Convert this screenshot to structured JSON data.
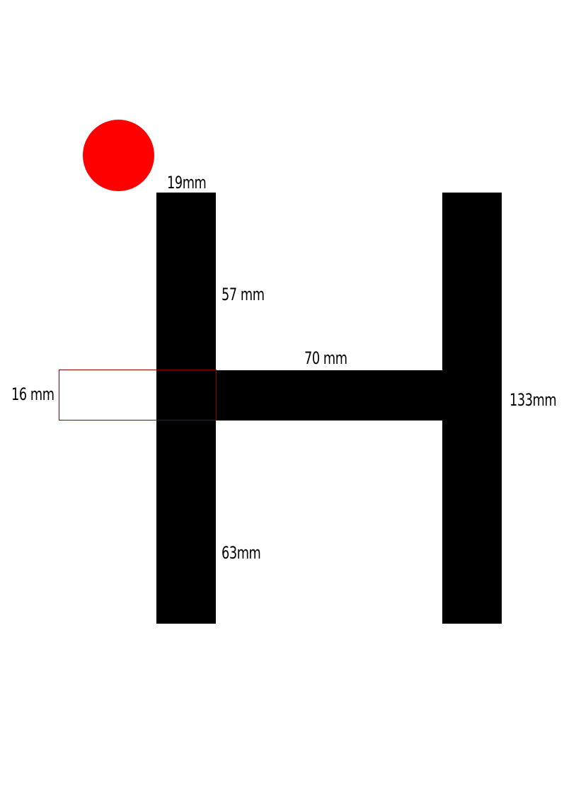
{
  "colors": {
    "letter": "#000000",
    "dot": "#ff0000",
    "outline": "#8b0000",
    "background": "#ffffff"
  },
  "labels": {
    "stroke_width": "19mm",
    "upper_stem_length": "57 mm",
    "crossbar_length": "70 mm",
    "crossbar_thickness": "16 mm",
    "total_height": "133mm",
    "lower_stem_length": "63mm"
  }
}
